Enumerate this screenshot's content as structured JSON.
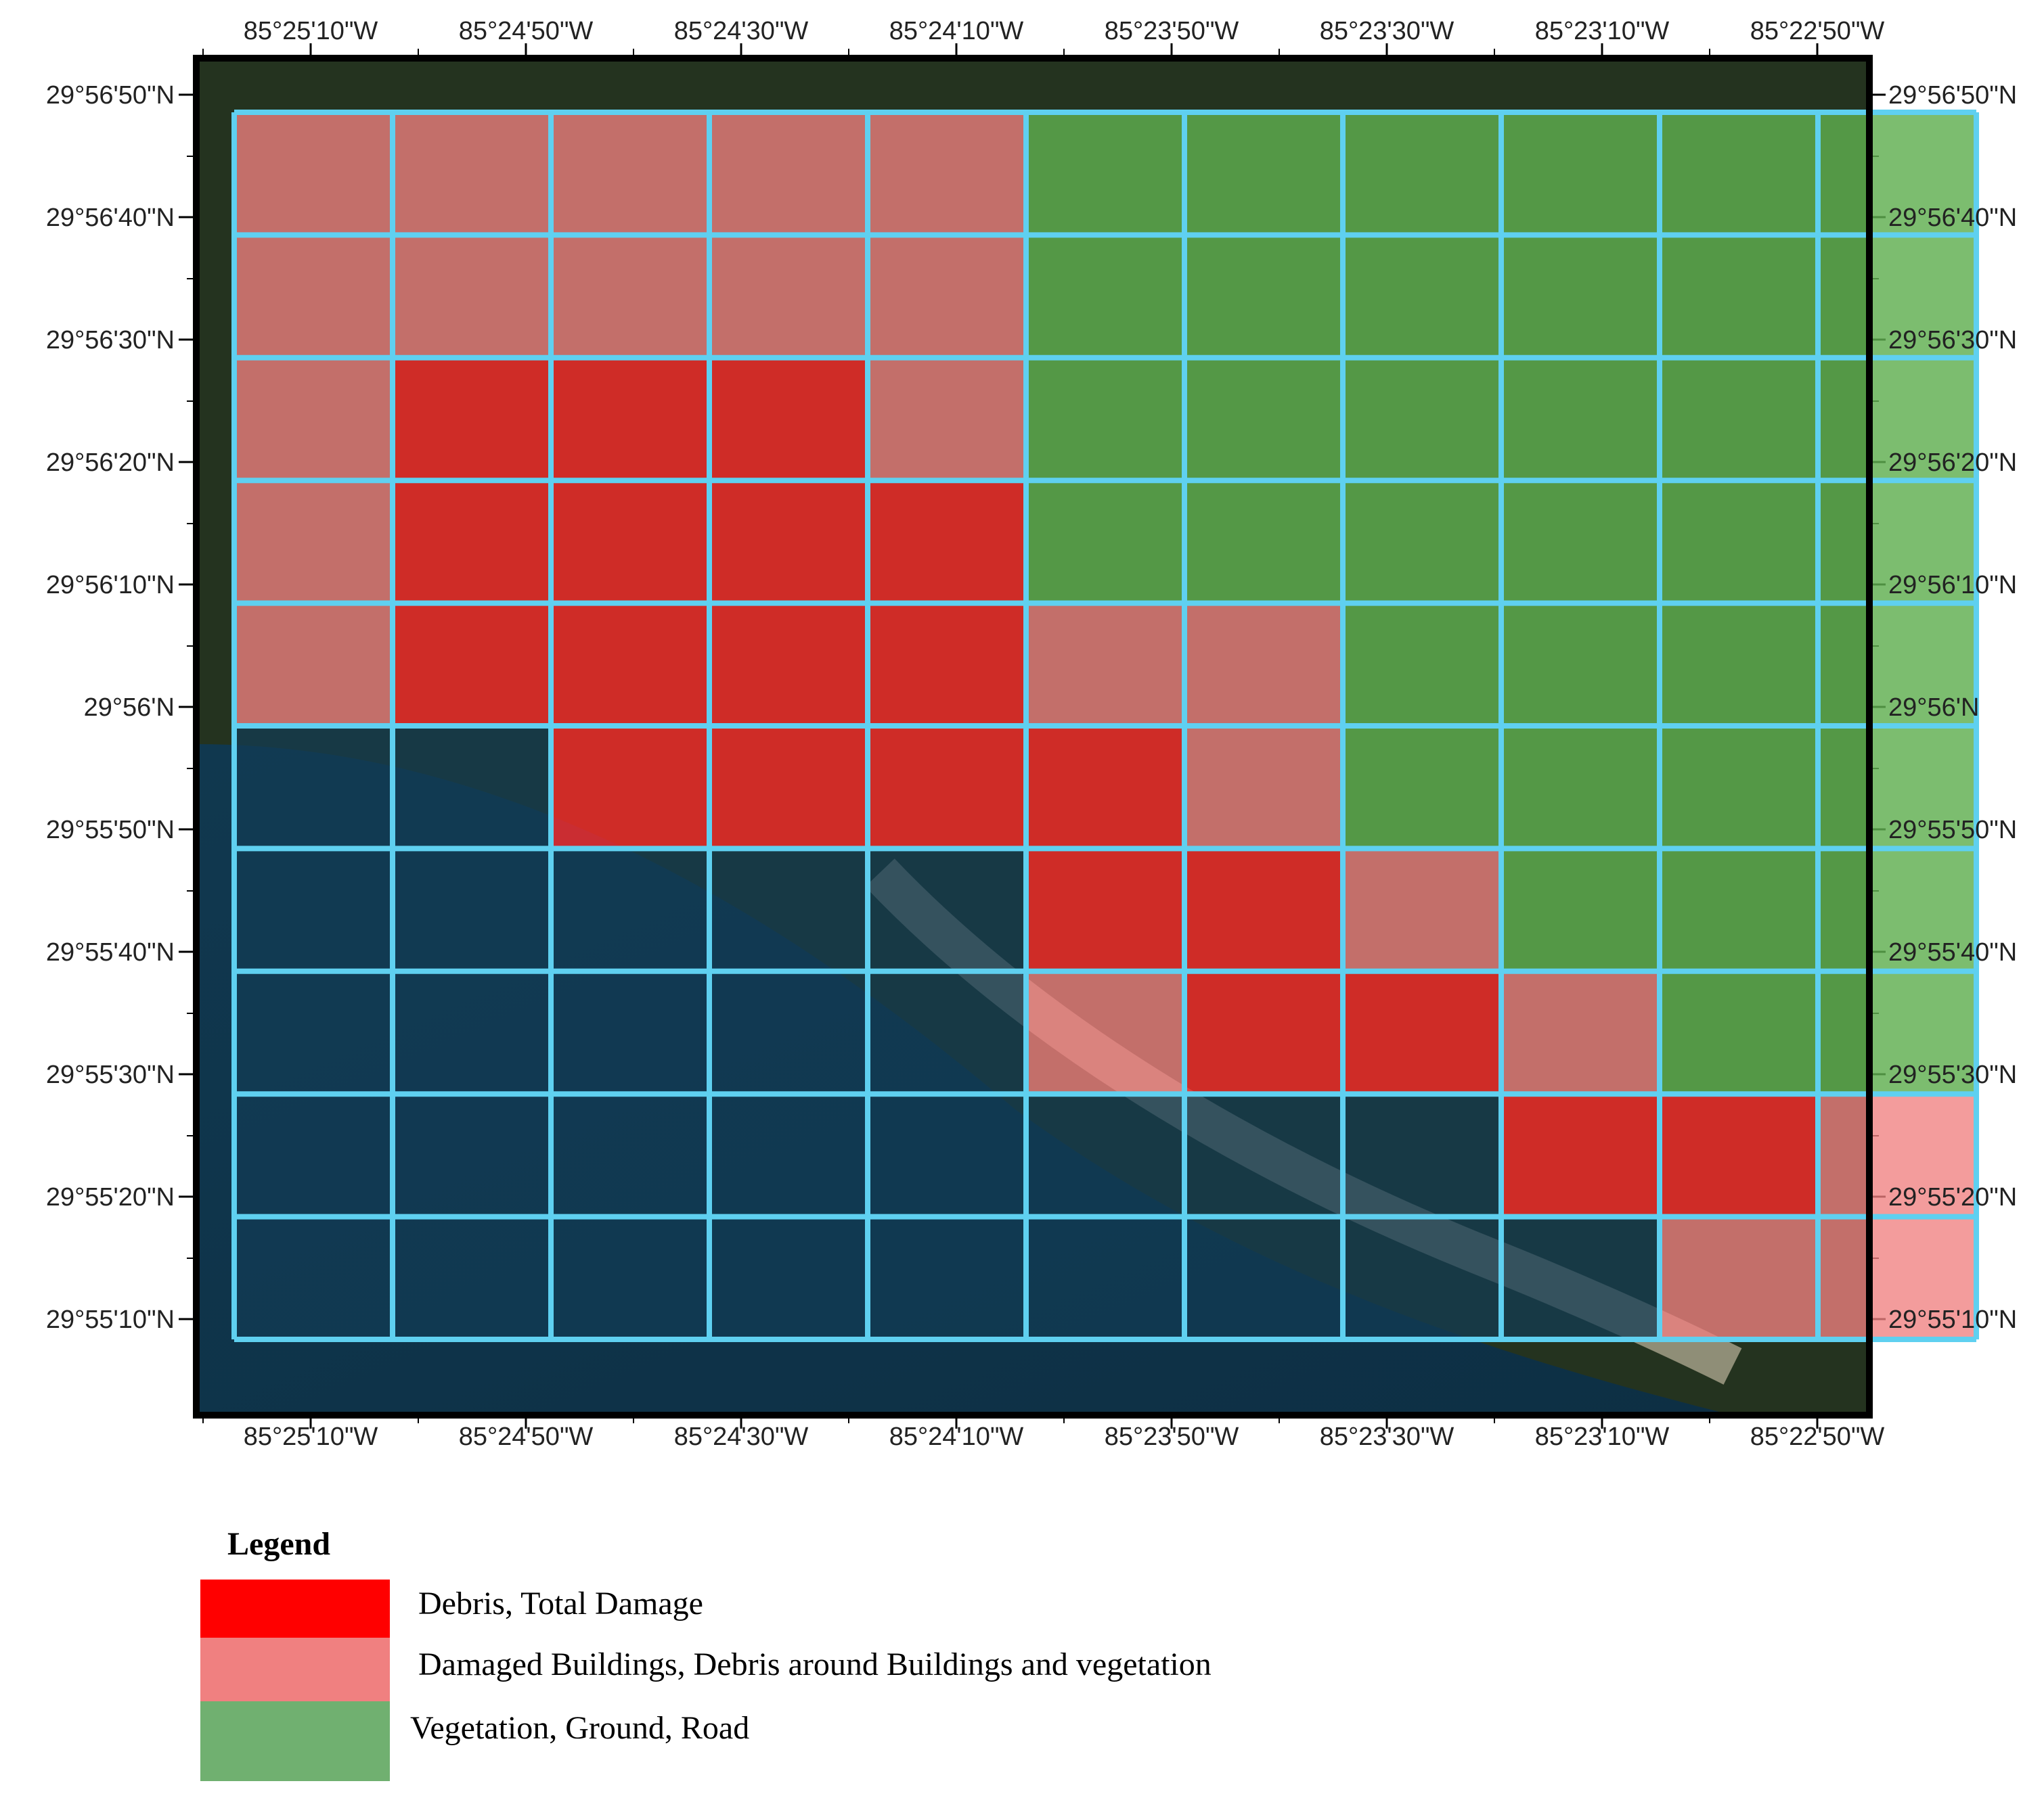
{
  "map": {
    "ticks": {
      "lon": [
        "85°25'10\"W",
        "85°24'50\"W",
        "85°24'30\"W",
        "85°24'10\"W",
        "85°23'50\"W",
        "85°23'30\"W",
        "85°23'10\"W",
        "85°22'50\"W"
      ],
      "lat": [
        "29°56'50\"N",
        "29°56'40\"N",
        "29°56'30\"N",
        "29°56'20\"N",
        "29°56'10\"N",
        "29°56'N",
        "29°55'50\"N",
        "29°55'40\"N",
        "29°55'30\"N",
        "29°55'20\"N",
        "29°55'10\"N"
      ]
    },
    "colors": {
      "debris": "#ff2a2a",
      "damaged": "#f08080",
      "vegetation": "#5fae4f",
      "water": "#123c55",
      "grid_line": "#5fd0f0",
      "frame": "#000000"
    },
    "grid_classes_note_legend": [
      "D = Debris, Total Damage",
      "P = Damaged Buildings",
      "V = Vegetation",
      "W = Water (unclassified)"
    ],
    "grid": [
      "PPPPPVVVVVV",
      "PPPPPVVVVVV",
      "PDDDPVVVVVV",
      "PDDDDVVVVVV",
      "PDDDDPPVVVV",
      "WWDDDDPVVVV",
      "WWWWWDDPVVV",
      "WWWWWPDDPVV",
      "WWWWWWWWDDP",
      "WWWWWWWWWPP"
    ]
  },
  "legend": {
    "title": "Legend",
    "items": [
      {
        "label": "Debris, Total Damage",
        "color": "#ff0000"
      },
      {
        "label": "Damaged Buildings, Debris around Buildings and vegetation",
        "color": "#f08080"
      },
      {
        "label": "Vegetation, Ground, Road",
        "color": "#70b070"
      }
    ]
  }
}
